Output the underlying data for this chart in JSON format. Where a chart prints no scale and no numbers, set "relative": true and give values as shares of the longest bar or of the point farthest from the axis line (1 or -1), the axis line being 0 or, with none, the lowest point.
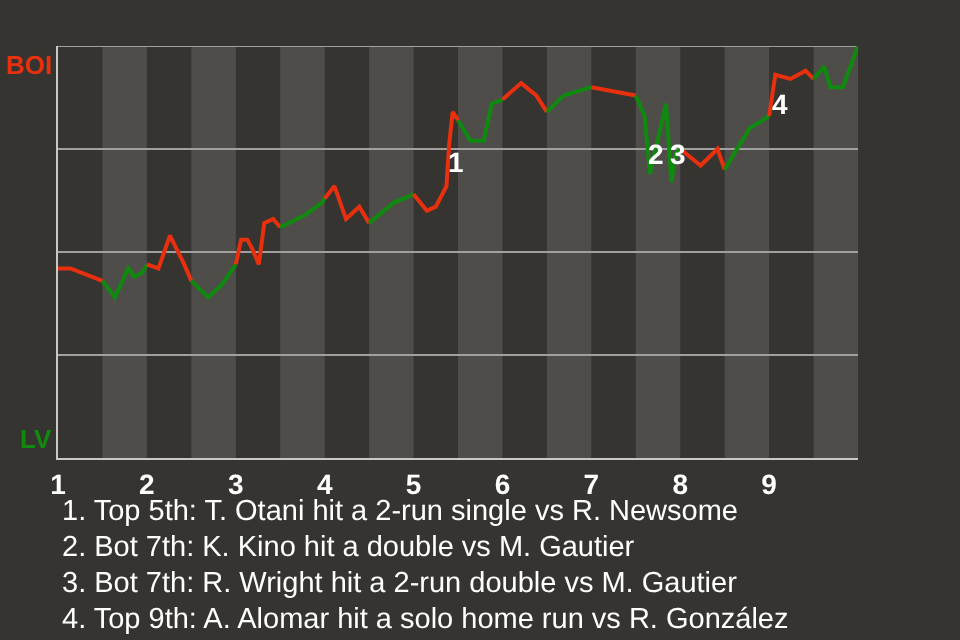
{
  "chart_data": {
    "type": "line",
    "relative": true,
    "xlim": [
      1,
      10
    ],
    "xticks": [
      1,
      2,
      3,
      4,
      5,
      6,
      7,
      8,
      9
    ],
    "marker": "none",
    "line_style": "solid",
    "series": [
      {
        "name": "BOI",
        "color": "#e8300e",
        "x": [
          1,
          1.14,
          1.5
        ],
        "values": [
          0.46,
          0.46,
          0.43
        ]
      },
      {
        "name": "LV",
        "color": "#0f8a0f",
        "x": [
          1.5,
          1.64,
          1.79,
          1.86,
          1.95,
          2
        ],
        "values": [
          0.43,
          0.39,
          0.46,
          0.44,
          0.45,
          0.47
        ]
      },
      {
        "color": "#e8300e",
        "x": [
          2,
          2.13,
          2.26,
          2.42,
          2.5
        ],
        "values": [
          0.47,
          0.46,
          0.54,
          0.47,
          0.43
        ]
      },
      {
        "color": "#0f8a0f",
        "x": [
          2.5,
          2.69,
          2.84,
          3
        ],
        "values": [
          0.43,
          0.39,
          0.42,
          0.47
        ]
      },
      {
        "color": "#e8300e",
        "x": [
          3,
          3.06,
          3.13,
          3.18,
          3.26,
          3.32,
          3.42,
          3.5
        ],
        "values": [
          0.47,
          0.53,
          0.53,
          0.51,
          0.47,
          0.57,
          0.58,
          0.56
        ]
      },
      {
        "color": "#0f8a0f",
        "x": [
          3.5,
          3.78,
          3.97,
          4
        ],
        "values": [
          0.56,
          0.59,
          0.62,
          0.63
        ]
      },
      {
        "color": "#e8300e",
        "x": [
          4,
          4.11,
          4.24,
          4.39,
          4.5
        ],
        "values": [
          0.63,
          0.66,
          0.58,
          0.61,
          0.57
        ]
      },
      {
        "color": "#0f8a0f",
        "x": [
          4.5,
          4.78,
          5
        ],
        "values": [
          0.57,
          0.62,
          0.64
        ]
      },
      {
        "color": "#e8300e",
        "x": [
          5,
          5.15,
          5.25,
          5.37,
          5.4,
          5.44,
          5.5
        ],
        "values": [
          0.64,
          0.6,
          0.61,
          0.66,
          0.76,
          0.84,
          0.82
        ]
      },
      {
        "color": "#0f8a0f",
        "x": [
          5.5,
          5.64,
          5.79,
          5.88,
          6
        ],
        "values": [
          0.82,
          0.77,
          0.77,
          0.86,
          0.87
        ]
      },
      {
        "color": "#e8300e",
        "x": [
          6,
          6.21,
          6.38,
          6.5
        ],
        "values": [
          0.87,
          0.91,
          0.88,
          0.84
        ]
      },
      {
        "color": "#0f8a0f",
        "x": [
          6.5,
          6.69,
          7
        ],
        "values": [
          0.84,
          0.88,
          0.9
        ]
      },
      {
        "color": "#e8300e",
        "x": [
          7,
          7.5
        ],
        "values": [
          0.9,
          0.88
        ]
      },
      {
        "color": "#0f8a0f",
        "x": [
          7.5,
          7.6,
          7.66,
          7.84,
          7.9,
          7.95,
          8
        ],
        "values": [
          0.88,
          0.83,
          0.69,
          0.86,
          0.67,
          0.74,
          0.75
        ]
      },
      {
        "color": "#e8300e",
        "x": [
          8,
          8.23,
          8.42,
          8.5
        ],
        "values": [
          0.75,
          0.71,
          0.75,
          0.7
        ]
      },
      {
        "color": "#0f8a0f",
        "x": [
          8.5,
          8.78,
          9
        ],
        "values": [
          0.7,
          0.8,
          0.83
        ]
      },
      {
        "color": "#e8300e",
        "x": [
          9,
          9.07,
          9.24,
          9.41,
          9.5
        ],
        "values": [
          0.83,
          0.93,
          0.92,
          0.94,
          0.92
        ]
      },
      {
        "color": "#0f8a0f",
        "x": [
          9.5,
          9.62,
          9.69,
          9.83,
          10
        ],
        "values": [
          0.92,
          0.95,
          0.9,
          0.9,
          1
        ]
      }
    ],
    "ref_lines": [
      {
        "axis": "y",
        "value": 0.25,
        "color": "#a0a0a0"
      },
      {
        "axis": "y",
        "value": 0.5,
        "color": "#a0a0a0"
      },
      {
        "axis": "y",
        "value": 0.75,
        "color": "#a0a0a0"
      },
      {
        "axis": "y",
        "value": 1,
        "color": "#a0a0a0"
      }
    ],
    "bands": [
      {
        "axis": "x",
        "from": 1.5,
        "to": 2,
        "color": "#4f4d4a"
      },
      {
        "axis": "x",
        "from": 2.5,
        "to": 3,
        "color": "#4f4d4a"
      },
      {
        "axis": "x",
        "from": 3.5,
        "to": 4,
        "color": "#4f4d4a"
      },
      {
        "axis": "x",
        "from": 4.5,
        "to": 5,
        "color": "#4f4d4a"
      },
      {
        "axis": "x",
        "from": 5.5,
        "to": 6,
        "color": "#4f4d4a"
      },
      {
        "axis": "x",
        "from": 6.5,
        "to": 7,
        "color": "#4f4d4a"
      },
      {
        "axis": "x",
        "from": 7.5,
        "to": 8,
        "color": "#4f4d4a"
      },
      {
        "axis": "x",
        "from": 8.5,
        "to": 9,
        "color": "#4f4d4a"
      },
      {
        "axis": "x",
        "from": 9.5,
        "to": 10,
        "color": "#4f4d4a"
      }
    ],
    "annotations": [
      {
        "text": "1",
        "x": 5.47,
        "y": 0.72
      },
      {
        "text": "2",
        "x": 7.73,
        "y": 0.74
      },
      {
        "text": "3",
        "x": 7.97,
        "y": 0.74
      },
      {
        "text": "4",
        "x": 9.12,
        "y": 0.86
      },
      "1. Top 5th: T. Otani hit a 2-run single vs R. Newsome",
      "2. Bot 7th: K. Kino hit a double vs M. Gautier",
      "3. Bot 7th: R. Wright hit a 2-run double vs M. Gautier",
      "4. Top 9th: A. Alomar hit a solo home run vs R. González"
    ]
  }
}
